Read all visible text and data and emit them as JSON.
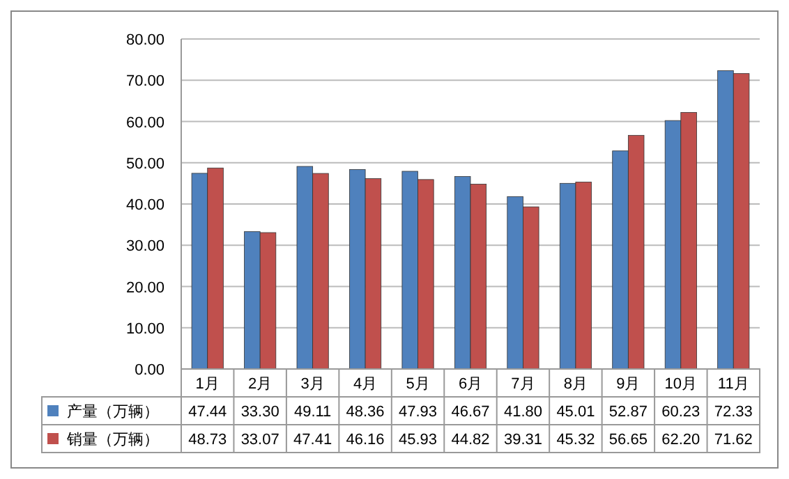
{
  "chart_data": {
    "type": "bar",
    "categories": [
      "1月",
      "2月",
      "3月",
      "4月",
      "5月",
      "6月",
      "7月",
      "8月",
      "9月",
      "10月",
      "11月"
    ],
    "series": [
      {
        "name": "产量（万辆）",
        "color": "#4f81bd",
        "values": [
          47.44,
          33.3,
          49.11,
          48.36,
          47.93,
          46.67,
          41.8,
          45.01,
          52.87,
          60.23,
          72.33
        ],
        "value_labels": [
          "47.44",
          "33.30",
          "49.11",
          "48.36",
          "47.93",
          "46.67",
          "41.80",
          "45.01",
          "52.87",
          "60.23",
          "72.33"
        ]
      },
      {
        "name": "销量（万辆）",
        "color": "#c0504d",
        "values": [
          48.73,
          33.07,
          47.41,
          46.16,
          45.93,
          44.82,
          39.31,
          45.32,
          56.65,
          62.2,
          71.62
        ],
        "value_labels": [
          "48.73",
          "33.07",
          "47.41",
          "46.16",
          "45.93",
          "44.82",
          "39.31",
          "45.32",
          "56.65",
          "62.20",
          "71.62"
        ]
      }
    ],
    "ylim": [
      0,
      80
    ],
    "yticks": [
      {
        "value": 0,
        "label": "0.00"
      },
      {
        "value": 10,
        "label": "10.00"
      },
      {
        "value": 20,
        "label": "20.00"
      },
      {
        "value": 30,
        "label": "30.00"
      },
      {
        "value": 40,
        "label": "40.00"
      },
      {
        "value": 50,
        "label": "50.00"
      },
      {
        "value": 60,
        "label": "60.00"
      },
      {
        "value": 70,
        "label": "70.00"
      },
      {
        "value": 80,
        "label": "80.00"
      }
    ],
    "grid": "y",
    "legend": "bottom"
  }
}
